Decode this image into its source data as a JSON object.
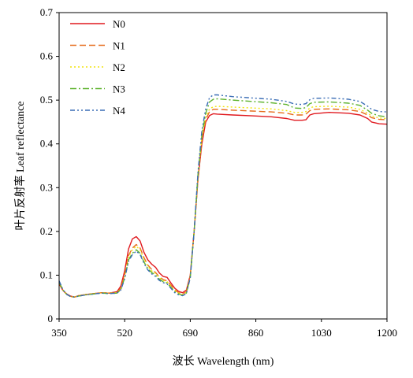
{
  "chart_data": {
    "type": "line",
    "title": "",
    "xlabel": "波长 Wavelength (nm)",
    "ylabel": "叶片反射率 Leaf reflectance",
    "xlim": [
      350,
      1200
    ],
    "ylim": [
      0,
      0.7
    ],
    "xticks": [
      350,
      520,
      690,
      860,
      1030,
      1200
    ],
    "yticks": [
      0,
      0.1,
      0.2,
      0.3,
      0.4,
      0.5,
      0.6,
      0.7
    ],
    "xtick_labels": [
      "350",
      "520",
      "690",
      "860",
      "1030",
      "1200"
    ],
    "ytick_labels": [
      "0",
      "0.1",
      "0.2",
      "0.3",
      "0.4",
      "0.5",
      "0.6",
      "0.7"
    ],
    "grid": false,
    "legend_position": "top-left",
    "series": [
      {
        "name": "N0",
        "color": "#e0191f",
        "dash": "solid",
        "x": [
          350,
          360,
          370,
          380,
          390,
          400,
          420,
          440,
          460,
          480,
          500,
          510,
          520,
          530,
          540,
          550,
          560,
          570,
          580,
          590,
          600,
          610,
          620,
          630,
          640,
          650,
          660,
          670,
          680,
          690,
          700,
          710,
          720,
          730,
          740,
          750,
          760,
          800,
          850,
          900,
          940,
          960,
          980,
          990,
          1000,
          1010,
          1050,
          1100,
          1130,
          1150,
          1160,
          1180,
          1200
        ],
        "y": [
          0.08,
          0.065,
          0.057,
          0.052,
          0.05,
          0.053,
          0.056,
          0.058,
          0.06,
          0.059,
          0.062,
          0.075,
          0.11,
          0.16,
          0.183,
          0.188,
          0.178,
          0.152,
          0.135,
          0.125,
          0.118,
          0.105,
          0.097,
          0.095,
          0.082,
          0.07,
          0.063,
          0.06,
          0.066,
          0.1,
          0.2,
          0.32,
          0.4,
          0.45,
          0.465,
          0.469,
          0.468,
          0.466,
          0.464,
          0.462,
          0.458,
          0.454,
          0.454,
          0.455,
          0.466,
          0.469,
          0.472,
          0.47,
          0.466,
          0.458,
          0.45,
          0.446,
          0.445
        ]
      },
      {
        "name": "N1",
        "color": "#e66b1a",
        "dash": "dashed",
        "x": [
          350,
          360,
          370,
          380,
          390,
          400,
          420,
          440,
          460,
          480,
          500,
          510,
          520,
          530,
          540,
          550,
          560,
          570,
          580,
          590,
          600,
          610,
          620,
          630,
          640,
          650,
          660,
          670,
          680,
          690,
          700,
          710,
          720,
          730,
          740,
          750,
          760,
          800,
          850,
          900,
          940,
          960,
          980,
          990,
          1000,
          1010,
          1050,
          1100,
          1130,
          1150,
          1160,
          1180,
          1200
        ],
        "y": [
          0.082,
          0.065,
          0.056,
          0.051,
          0.05,
          0.053,
          0.056,
          0.058,
          0.06,
          0.059,
          0.06,
          0.07,
          0.1,
          0.145,
          0.162,
          0.17,
          0.162,
          0.14,
          0.123,
          0.113,
          0.106,
          0.096,
          0.09,
          0.087,
          0.077,
          0.066,
          0.06,
          0.057,
          0.062,
          0.098,
          0.2,
          0.32,
          0.41,
          0.455,
          0.474,
          0.479,
          0.479,
          0.477,
          0.475,
          0.473,
          0.47,
          0.466,
          0.466,
          0.468,
          0.476,
          0.479,
          0.48,
          0.478,
          0.474,
          0.466,
          0.46,
          0.456,
          0.455
        ]
      },
      {
        "name": "N2",
        "color": "#f2e40d",
        "dash": "dotted",
        "x": [
          350,
          360,
          370,
          380,
          390,
          400,
          420,
          440,
          460,
          480,
          500,
          510,
          520,
          530,
          540,
          550,
          560,
          570,
          580,
          590,
          600,
          610,
          620,
          630,
          640,
          650,
          660,
          670,
          680,
          690,
          700,
          710,
          720,
          730,
          740,
          750,
          760,
          800,
          850,
          900,
          940,
          960,
          980,
          990,
          1000,
          1010,
          1050,
          1100,
          1130,
          1150,
          1160,
          1180,
          1200
        ],
        "y": [
          0.083,
          0.066,
          0.056,
          0.051,
          0.05,
          0.053,
          0.056,
          0.058,
          0.06,
          0.059,
          0.06,
          0.069,
          0.098,
          0.142,
          0.158,
          0.166,
          0.158,
          0.136,
          0.12,
          0.11,
          0.104,
          0.094,
          0.088,
          0.085,
          0.075,
          0.065,
          0.059,
          0.056,
          0.061,
          0.097,
          0.2,
          0.325,
          0.415,
          0.462,
          0.48,
          0.485,
          0.486,
          0.484,
          0.482,
          0.48,
          0.476,
          0.472,
          0.472,
          0.474,
          0.482,
          0.485,
          0.486,
          0.484,
          0.479,
          0.47,
          0.464,
          0.459,
          0.458
        ]
      },
      {
        "name": "N3",
        "color": "#5fb32e",
        "dash": "dashdot",
        "x": [
          350,
          360,
          370,
          380,
          390,
          400,
          420,
          440,
          460,
          480,
          500,
          510,
          520,
          530,
          540,
          550,
          560,
          570,
          580,
          590,
          600,
          610,
          620,
          630,
          640,
          650,
          660,
          670,
          680,
          690,
          700,
          710,
          720,
          730,
          740,
          750,
          760,
          800,
          850,
          900,
          940,
          960,
          980,
          990,
          1000,
          1010,
          1050,
          1100,
          1130,
          1150,
          1160,
          1180,
          1200
        ],
        "y": [
          0.084,
          0.066,
          0.056,
          0.051,
          0.05,
          0.052,
          0.055,
          0.057,
          0.059,
          0.058,
          0.059,
          0.067,
          0.094,
          0.135,
          0.15,
          0.158,
          0.15,
          0.13,
          0.115,
          0.106,
          0.1,
          0.091,
          0.085,
          0.082,
          0.072,
          0.062,
          0.057,
          0.054,
          0.059,
          0.095,
          0.2,
          0.33,
          0.42,
          0.47,
          0.496,
          0.502,
          0.503,
          0.5,
          0.497,
          0.494,
          0.49,
          0.482,
          0.481,
          0.483,
          0.492,
          0.495,
          0.496,
          0.493,
          0.488,
          0.477,
          0.47,
          0.464,
          0.462
        ]
      },
      {
        "name": "N4",
        "color": "#3a6db5",
        "dash": "dashdotdot",
        "x": [
          350,
          360,
          370,
          380,
          390,
          400,
          420,
          440,
          460,
          480,
          500,
          510,
          520,
          530,
          540,
          550,
          560,
          570,
          580,
          590,
          600,
          610,
          620,
          630,
          640,
          650,
          660,
          670,
          680,
          690,
          700,
          710,
          720,
          730,
          740,
          750,
          760,
          800,
          850,
          900,
          940,
          960,
          980,
          990,
          1000,
          1010,
          1050,
          1100,
          1130,
          1150,
          1160,
          1180,
          1200
        ],
        "y": [
          0.087,
          0.067,
          0.056,
          0.051,
          0.05,
          0.052,
          0.055,
          0.057,
          0.059,
          0.058,
          0.059,
          0.066,
          0.092,
          0.132,
          0.147,
          0.155,
          0.147,
          0.127,
          0.112,
          0.103,
          0.097,
          0.088,
          0.083,
          0.08,
          0.07,
          0.06,
          0.055,
          0.053,
          0.058,
          0.094,
          0.2,
          0.335,
          0.43,
          0.48,
          0.506,
          0.512,
          0.512,
          0.508,
          0.505,
          0.502,
          0.497,
          0.491,
          0.49,
          0.492,
          0.501,
          0.504,
          0.505,
          0.502,
          0.497,
          0.486,
          0.479,
          0.474,
          0.473
        ]
      }
    ]
  }
}
